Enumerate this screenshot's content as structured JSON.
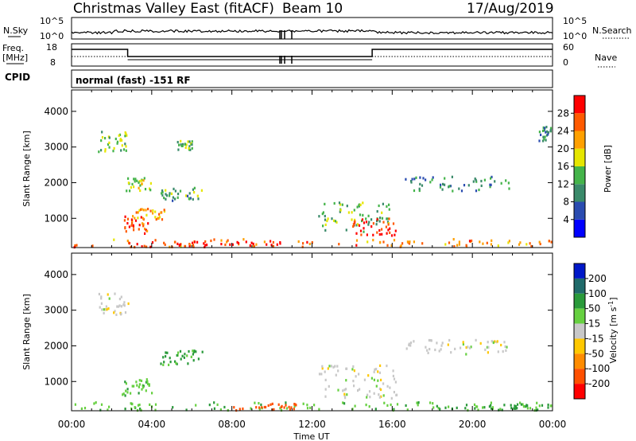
{
  "header": {
    "station": "Christmas Valley East (fitACF)",
    "beam": "Beam 10",
    "date": "17/Aug/2019"
  },
  "strip_labels": {
    "nsky": "N.Sky",
    "nsearch": "N.Search",
    "freq_line1": "Freq.",
    "freq_line2": "[MHz]",
    "nave": "Nave",
    "cpid": "CPID",
    "cpid_value": "normal (fast) -151 RF"
  },
  "strip_ticks": {
    "noise_top": "10^5",
    "noise_bottom": "10^0",
    "freq_top": "18",
    "freq_bottom": "8",
    "nave_top": "60",
    "nave_bottom": "0"
  },
  "colors": {
    "power_scale": [
      "#0000ff",
      "#2a4cb0",
      "#3a8a6a",
      "#44b44a",
      "#e6e600",
      "#ffa000",
      "#ff5a00",
      "#ff0000"
    ],
    "velocity_scale": [
      "#0018c8",
      "#1f6a6a",
      "#2a9a3a",
      "#66d040",
      "#c8c8c8",
      "#ffc800",
      "#ff8c00",
      "#ff5000",
      "#ff0000"
    ]
  },
  "chart_data": [
    {
      "type": "heatmap",
      "title": "",
      "xlabel": "Time UT",
      "ylabel": "Slant Range [km]",
      "xlim": [
        "00:00",
        "24:00"
      ],
      "ylim": [
        180,
        4600
      ],
      "x_ticks": [
        "00:00",
        "04:00",
        "08:00",
        "12:00",
        "16:00",
        "20:00",
        "00:00"
      ],
      "y_ticks": [
        "1000",
        "2000",
        "3000",
        "4000"
      ],
      "colorbar": {
        "label": "Power [dB]",
        "range": [
          0,
          32
        ],
        "ticks": [
          "4",
          "8",
          "12",
          "16",
          "20",
          "24",
          "28"
        ]
      },
      "echo_regions": [
        {
          "t0": 0.0,
          "t1": 24.0,
          "r0": 200,
          "r1": 450,
          "level": 24
        },
        {
          "t0": 3.0,
          "t1": 10.5,
          "r0": 200,
          "r1": 400,
          "level": 30
        },
        {
          "t0": 2.6,
          "t1": 3.8,
          "r0": 600,
          "r1": 1100,
          "level": 28
        },
        {
          "t0": 3.0,
          "t1": 4.6,
          "r0": 1000,
          "r1": 1300,
          "level": 22
        },
        {
          "t0": 1.3,
          "t1": 2.8,
          "r0": 2900,
          "r1": 3500,
          "level": 14
        },
        {
          "t0": 2.7,
          "t1": 4.0,
          "r0": 1800,
          "r1": 2200,
          "level": 18
        },
        {
          "t0": 4.4,
          "t1": 6.6,
          "r0": 1500,
          "r1": 1900,
          "level": 12
        },
        {
          "t0": 5.2,
          "t1": 6.0,
          "r0": 2950,
          "r1": 3200,
          "level": 14
        },
        {
          "t0": 12.3,
          "t1": 16.0,
          "r0": 650,
          "r1": 1500,
          "level": 14
        },
        {
          "t0": 14.0,
          "t1": 16.2,
          "r0": 550,
          "r1": 1050,
          "level": 30
        },
        {
          "t0": 16.3,
          "t1": 21.8,
          "r0": 1800,
          "r1": 2200,
          "level": 10
        },
        {
          "t0": 23.3,
          "t1": 24.0,
          "r0": 3200,
          "r1": 3600,
          "level": 10
        }
      ]
    },
    {
      "type": "heatmap",
      "title": "",
      "xlabel": "Time UT",
      "ylabel": "Slant Range [km]",
      "xlim": [
        "00:00",
        "24:00"
      ],
      "ylim": [
        180,
        4600
      ],
      "x_ticks": [
        "00:00",
        "04:00",
        "08:00",
        "12:00",
        "16:00",
        "20:00",
        "00:00"
      ],
      "y_ticks": [
        "1000",
        "2000",
        "3000",
        "4000"
      ],
      "colorbar": {
        "label": "Velocity [m s^-1]",
        "ticks": [
          "200",
          "100",
          "50",
          "15",
          "-15",
          "-50",
          "-100",
          "-200"
        ]
      },
      "echo_regions": [
        {
          "t0": 0.0,
          "t1": 24.0,
          "r0": 200,
          "r1": 450,
          "level": 40
        },
        {
          "t0": 8.0,
          "t1": 11.5,
          "r0": 200,
          "r1": 420,
          "level": -120
        },
        {
          "t0": 2.5,
          "t1": 4.0,
          "r0": 600,
          "r1": 1100,
          "level": 40
        },
        {
          "t0": 1.3,
          "t1": 2.8,
          "r0": 2900,
          "r1": 3500,
          "level": 0
        },
        {
          "t0": 4.4,
          "t1": 6.6,
          "r0": 1500,
          "r1": 1900,
          "level": 60
        },
        {
          "t0": 12.3,
          "t1": 16.2,
          "r0": 550,
          "r1": 1500,
          "level": 0
        },
        {
          "t0": 16.3,
          "t1": 21.8,
          "r0": 1800,
          "r1": 2200,
          "level": 0
        },
        {
          "t0": 18.0,
          "t1": 24.0,
          "r0": 200,
          "r1": 400,
          "level": 60
        }
      ]
    }
  ]
}
